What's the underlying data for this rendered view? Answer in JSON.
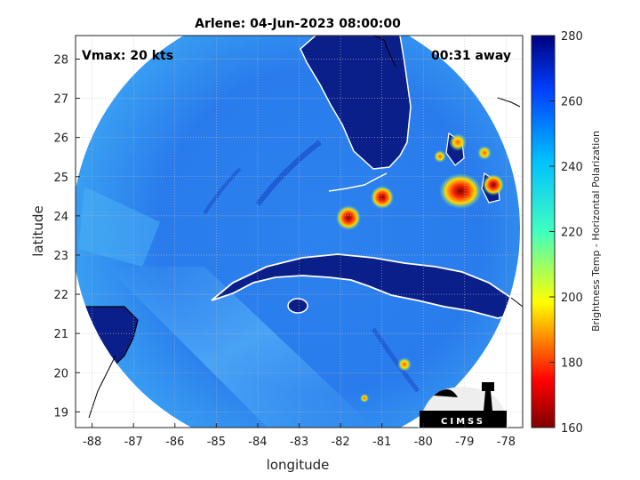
{
  "title": "Arlene: 04-Jun-2023 08:00:00",
  "vmax_label": "Vmax: 20 kts",
  "time_label": "00:31 away",
  "xlabel": "longitude",
  "ylabel": "latitude",
  "colorbar_label": "Brightness Temp - Horizontal Polarization",
  "logo_text": "CIMSS",
  "x_ticks": [
    "-88",
    "-87",
    "-86",
    "-85",
    "-84",
    "-83",
    "-82",
    "-81",
    "-80",
    "-79",
    "-78"
  ],
  "y_ticks": [
    "28",
    "27",
    "26",
    "25",
    "24",
    "23",
    "22",
    "21",
    "20",
    "19"
  ],
  "colorbar_ticks": [
    "280",
    "260",
    "240",
    "220",
    "200",
    "180",
    "160"
  ],
  "colors": {
    "ocean_deep": "#1f5fe0",
    "ocean_mid": "#2f86f0",
    "ocean_light": "#3aa8f5",
    "land": "#0b1f8a",
    "coast": "#ffffff",
    "convection_hot": "#ff2a00",
    "convection_warm": "#ffd800"
  },
  "chart_data": {
    "type": "heatmap",
    "title": "Arlene: 04-Jun-2023 08:00:00",
    "xlabel": "longitude",
    "ylabel": "latitude",
    "xlim": [
      -88.4,
      -77.6
    ],
    "ylim": [
      18.6,
      28.6
    ],
    "colorbar": {
      "label": "Brightness Temp - Horizontal Polarization",
      "range": [
        160,
        280
      ],
      "colormap": "jet"
    },
    "annotations": [
      "Vmax: 20 kts",
      "00:31 away"
    ],
    "grid": true
  }
}
